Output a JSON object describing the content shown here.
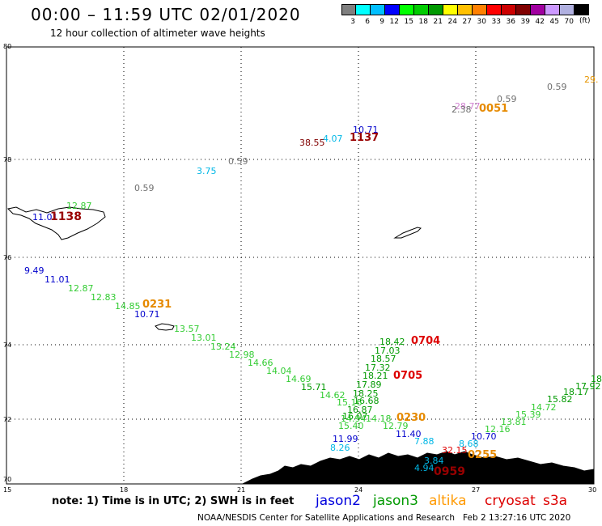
{
  "header": {
    "title": "00:00 – 11:59 UTC 02/01/2020",
    "subtitle": "12 hour collection of altimeter wave heights"
  },
  "colorbar": {
    "colors": [
      "#7f7f7f",
      "#00ffff",
      "#00bfff",
      "#0000ff",
      "#00ff00",
      "#00cc00",
      "#009900",
      "#ffff00",
      "#ffc000",
      "#ff8000",
      "#ff0000",
      "#cc0000",
      "#800000",
      "#a000a0",
      "#cc99ff",
      "#b0b0e0",
      "#000000"
    ],
    "labels": [
      "3",
      "6",
      "9",
      "12",
      "15",
      "18",
      "21",
      "24",
      "27",
      "30",
      "33",
      "36",
      "39",
      "42",
      "45",
      "70"
    ],
    "unit": "(ft)"
  },
  "axes": {
    "lat_labels": [
      "80",
      "78",
      "76",
      "74",
      "72",
      "70"
    ],
    "lon_labels": [
      "15",
      "18",
      "21",
      "24",
      "27",
      "30"
    ]
  },
  "map_labels": [
    {
      "text": "29.",
      "color": "#e69500",
      "size": 11
    },
    {
      "text": "0.59",
      "color": "#707070",
      "size": 11
    },
    {
      "text": "0.59",
      "color": "#707070",
      "size": 11
    },
    {
      "text": "28.77",
      "color": "#d080d0",
      "size": 11
    },
    {
      "text": "2.38",
      "color": "#707070",
      "size": 11
    },
    {
      "text": "0051",
      "color": "#e68a00",
      "size": 13
    },
    {
      "text": "10.71",
      "color": "#0000cc",
      "size": 11
    },
    {
      "text": "4.07",
      "color": "#00b7e6",
      "size": 11
    },
    {
      "text": "38.55",
      "color": "#800000",
      "size": 11
    },
    {
      "text": "1137",
      "color": "#990000",
      "size": 13
    },
    {
      "text": "3.75",
      "color": "#00b7e6",
      "size": 11
    },
    {
      "text": "0.59",
      "color": "#707070",
      "size": 11
    },
    {
      "text": "0.59",
      "color": "#707070",
      "size": 11
    },
    {
      "text": "12.87",
      "color": "#33cc33",
      "size": 11
    },
    {
      "text": "11.01",
      "color": "#0000cc",
      "size": 11
    },
    {
      "text": "1138",
      "color": "#990000",
      "size": 14
    },
    {
      "text": "9.49",
      "color": "#0000cc",
      "size": 11
    },
    {
      "text": "11.01",
      "color": "#0000cc",
      "size": 11
    },
    {
      "text": "12.87",
      "color": "#33cc33",
      "size": 11
    },
    {
      "text": "12.83",
      "color": "#33cc33",
      "size": 11
    },
    {
      "text": "14.85",
      "color": "#33cc33",
      "size": 11
    },
    {
      "text": "0231",
      "color": "#e68a00",
      "size": 13
    },
    {
      "text": "10.71",
      "color": "#0000cc",
      "size": 11
    },
    {
      "text": "13.57",
      "color": "#33cc33",
      "size": 11
    },
    {
      "text": "13.01",
      "color": "#33cc33",
      "size": 11
    },
    {
      "text": "13.24",
      "color": "#33cc33",
      "size": 11
    },
    {
      "text": "12.98",
      "color": "#33cc33",
      "size": 11
    },
    {
      "text": "14.66",
      "color": "#33cc33",
      "size": 11
    },
    {
      "text": "14.04",
      "color": "#33cc33",
      "size": 11
    },
    {
      "text": "14.69",
      "color": "#33cc33",
      "size": 11
    },
    {
      "text": "15.71",
      "color": "#009900",
      "size": 11
    },
    {
      "text": "14.62",
      "color": "#33cc33",
      "size": 11
    },
    {
      "text": "18.42",
      "color": "#009900",
      "size": 11
    },
    {
      "text": "0704",
      "color": "#dd0000",
      "size": 13
    },
    {
      "text": "17.03",
      "color": "#009900",
      "size": 11
    },
    {
      "text": "18.57",
      "color": "#009900",
      "size": 11
    },
    {
      "text": "17.32",
      "color": "#009900",
      "size": 11
    },
    {
      "text": "18.21",
      "color": "#009900",
      "size": 11
    },
    {
      "text": "0705",
      "color": "#dd0000",
      "size": 13
    },
    {
      "text": "17.89",
      "color": "#009900",
      "size": 11
    },
    {
      "text": "18.25",
      "color": "#009900",
      "size": 11
    },
    {
      "text": "16.68",
      "color": "#009900",
      "size": 11
    },
    {
      "text": "15.16",
      "color": "#33cc33",
      "size": 11
    },
    {
      "text": "16.87",
      "color": "#009900",
      "size": 11
    },
    {
      "text": "16.07",
      "color": "#009900",
      "size": 11
    },
    {
      "text": "14.94",
      "color": "#33cc33",
      "size": 11
    },
    {
      "text": "14.18",
      "color": "#33cc33",
      "size": 11
    },
    {
      "text": "0230",
      "color": "#e68a00",
      "size": 13
    },
    {
      "text": "15.40",
      "color": "#33cc33",
      "size": 11
    },
    {
      "text": "12.79",
      "color": "#33cc33",
      "size": 11
    },
    {
      "text": "11.99",
      "color": "#0000cc",
      "size": 11
    },
    {
      "text": "11.40",
      "color": "#0000cc",
      "size": 11
    },
    {
      "text": "8.26",
      "color": "#00b7e6",
      "size": 11
    },
    {
      "text": "7.88",
      "color": "#00b7e6",
      "size": 11
    },
    {
      "text": "10.70",
      "color": "#0000cc",
      "size": 11
    },
    {
      "text": "8.68",
      "color": "#00b7e6",
      "size": 11
    },
    {
      "text": "12.16",
      "color": "#33cc33",
      "size": 11
    },
    {
      "text": "13.81",
      "color": "#33cc33",
      "size": 11
    },
    {
      "text": "15.39",
      "color": "#33cc33",
      "size": 11
    },
    {
      "text": "14.72",
      "color": "#33cc33",
      "size": 11
    },
    {
      "text": "15.82",
      "color": "#009900",
      "size": 11
    },
    {
      "text": "18.17",
      "color": "#009900",
      "size": 11
    },
    {
      "text": "17.92",
      "color": "#009900",
      "size": 11
    },
    {
      "text": "18",
      "color": "#009900",
      "size": 11
    },
    {
      "text": "32.15",
      "color": "#dd0000",
      "size": 11
    },
    {
      "text": "0255",
      "color": "#e68a00",
      "size": 13
    },
    {
      "text": "3.84",
      "color": "#00b7e6",
      "size": 11
    },
    {
      "text": "4.94",
      "color": "#00b7e6",
      "size": 11
    },
    {
      "text": "0959",
      "color": "#990000",
      "size": 14
    }
  ],
  "footer": {
    "note": "note:  1) Time is in UTC;  2) SWH is in feet",
    "legend": [
      {
        "text": "jason2",
        "color": "#0000dd"
      },
      {
        "text": "jason3",
        "color": "#009900"
      },
      {
        "text": "altika",
        "color": "#ff9900"
      },
      {
        "text": "cryosat",
        "color": "#dd0000"
      },
      {
        "text": "s3a",
        "color": "#dd0000"
      }
    ],
    "credit": "NOAA/NESDIS Center for Satellite Applications and Research",
    "timestamp": "Feb  2 13:27:16 UTC 2020"
  }
}
